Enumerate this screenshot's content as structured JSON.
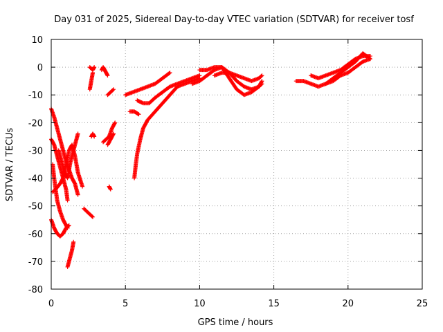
{
  "chart_data": {
    "type": "scatter",
    "title": "Day 031 of 2025, Sidereal Day-to-day VTEC variation (SDTVAR) for receiver tosf",
    "xlabel": "GPS time / hours",
    "ylabel": "SDTVAR / TECUs",
    "xlim": [
      0,
      25
    ],
    "ylim": [
      -80,
      10
    ],
    "xticks": [
      0,
      5,
      10,
      15,
      20,
      25
    ],
    "yticks": [
      -80,
      -70,
      -60,
      -50,
      -40,
      -30,
      -20,
      -10,
      0,
      10
    ],
    "grid": true,
    "marker": "plus",
    "color": "#ff0000",
    "segments": [
      [
        [
          0.0,
          -15
        ],
        [
          0.2,
          -18
        ],
        [
          0.4,
          -22
        ],
        [
          0.6,
          -26
        ],
        [
          0.8,
          -30
        ],
        [
          1.0,
          -34
        ],
        [
          1.2,
          -37
        ],
        [
          1.4,
          -40
        ],
        [
          1.6,
          -42
        ],
        [
          1.8,
          -46
        ]
      ],
      [
        [
          0.0,
          -26
        ],
        [
          0.2,
          -28
        ],
        [
          0.4,
          -32
        ],
        [
          0.6,
          -36
        ],
        [
          0.8,
          -40
        ],
        [
          1.0,
          -44
        ],
        [
          1.1,
          -48
        ]
      ],
      [
        [
          0.1,
          -35
        ],
        [
          0.2,
          -40
        ],
        [
          0.3,
          -44
        ],
        [
          0.4,
          -48
        ],
        [
          0.6,
          -52
        ],
        [
          0.8,
          -55
        ],
        [
          1.0,
          -57
        ],
        [
          1.1,
          -58
        ]
      ],
      [
        [
          0.1,
          -45
        ],
        [
          0.3,
          -44
        ],
        [
          0.6,
          -42
        ],
        [
          0.8,
          -40
        ],
        [
          1.0,
          -35
        ],
        [
          1.2,
          -30
        ],
        [
          1.4,
          -28
        ],
        [
          1.6,
          -32
        ],
        [
          1.8,
          -38
        ],
        [
          2.1,
          -43
        ]
      ],
      [
        [
          0.0,
          -55
        ],
        [
          0.2,
          -58
        ],
        [
          0.4,
          -60
        ],
        [
          0.6,
          -61
        ],
        [
          0.8,
          -60
        ],
        [
          1.0,
          -58
        ],
        [
          1.2,
          -57
        ]
      ],
      [
        [
          0.5,
          -30
        ],
        [
          0.7,
          -34
        ],
        [
          0.9,
          -38
        ],
        [
          1.1,
          -40
        ],
        [
          1.3,
          -34
        ],
        [
          1.5,
          -30
        ],
        [
          1.7,
          -26
        ],
        [
          1.8,
          -24
        ]
      ],
      [
        [
          1.1,
          -72
        ],
        [
          1.2,
          -70
        ],
        [
          1.3,
          -68
        ],
        [
          1.4,
          -66
        ],
        [
          1.5,
          -63
        ]
      ],
      [
        [
          2.2,
          -51
        ],
        [
          2.4,
          -52
        ],
        [
          2.6,
          -53
        ],
        [
          2.8,
          -54
        ]
      ],
      [
        [
          2.7,
          -25
        ],
        [
          2.8,
          -24
        ],
        [
          2.9,
          -25
        ]
      ],
      [
        [
          2.6,
          -8
        ],
        [
          2.7,
          -5
        ],
        [
          2.8,
          -2
        ]
      ],
      [
        [
          2.6,
          0
        ],
        [
          2.8,
          -1
        ],
        [
          2.9,
          0
        ]
      ],
      [
        [
          3.4,
          -1
        ],
        [
          3.5,
          0
        ],
        [
          3.6,
          -1
        ],
        [
          3.7,
          -2
        ],
        [
          3.8,
          -3
        ]
      ],
      [
        [
          3.5,
          -27
        ],
        [
          3.7,
          -26
        ],
        [
          3.9,
          -25
        ],
        [
          4.1,
          -22
        ],
        [
          4.3,
          -20
        ]
      ],
      [
        [
          3.8,
          -28
        ],
        [
          4.0,
          -26
        ],
        [
          4.2,
          -24
        ]
      ],
      [
        [
          3.8,
          -10
        ],
        [
          4.0,
          -9
        ],
        [
          4.2,
          -8
        ]
      ],
      [
        [
          3.9,
          -43
        ],
        [
          4.0,
          -44
        ]
      ],
      [
        [
          5.0,
          -10
        ],
        [
          5.5,
          -9
        ],
        [
          6.0,
          -8
        ],
        [
          6.5,
          -7
        ],
        [
          7.0,
          -6
        ],
        [
          7.5,
          -4
        ],
        [
          8.0,
          -2
        ]
      ],
      [
        [
          5.3,
          -16
        ],
        [
          5.6,
          -16
        ],
        [
          5.9,
          -17
        ]
      ],
      [
        [
          5.6,
          -40
        ],
        [
          5.7,
          -35
        ],
        [
          5.8,
          -31
        ],
        [
          6.0,
          -26
        ],
        [
          6.2,
          -22
        ],
        [
          6.5,
          -19
        ],
        [
          7.0,
          -16
        ],
        [
          7.5,
          -13
        ],
        [
          8.0,
          -10
        ],
        [
          8.5,
          -7
        ],
        [
          9.0,
          -6
        ],
        [
          9.5,
          -5
        ],
        [
          10.0,
          -4
        ]
      ],
      [
        [
          5.8,
          -12
        ],
        [
          6.2,
          -13
        ],
        [
          6.6,
          -13
        ],
        [
          7.0,
          -11
        ],
        [
          7.5,
          -9
        ],
        [
          8.0,
          -7
        ],
        [
          8.5,
          -6
        ],
        [
          9.0,
          -5
        ],
        [
          9.5,
          -4
        ],
        [
          10.0,
          -3
        ]
      ],
      [
        [
          9.5,
          -6
        ],
        [
          10.0,
          -5
        ],
        [
          10.5,
          -3
        ],
        [
          11.0,
          -1
        ],
        [
          11.5,
          0
        ],
        [
          12.0,
          -2
        ],
        [
          12.5,
          -5
        ],
        [
          13.0,
          -7
        ],
        [
          13.5,
          -8
        ],
        [
          14.0,
          -7
        ],
        [
          14.2,
          -6
        ]
      ],
      [
        [
          10.0,
          -1
        ],
        [
          10.5,
          -1
        ],
        [
          11.0,
          0
        ],
        [
          11.5,
          0
        ],
        [
          12.0,
          -4
        ],
        [
          12.5,
          -8
        ],
        [
          13.0,
          -10
        ],
        [
          13.5,
          -9
        ],
        [
          14.0,
          -7
        ],
        [
          14.2,
          -5
        ]
      ],
      [
        [
          11.0,
          -3
        ],
        [
          11.5,
          -2
        ],
        [
          12.0,
          -2
        ],
        [
          12.5,
          -3
        ],
        [
          13.0,
          -4
        ],
        [
          13.5,
          -5
        ],
        [
          14.0,
          -4
        ],
        [
          14.2,
          -3
        ]
      ],
      [
        [
          16.5,
          -5
        ],
        [
          17.0,
          -5
        ],
        [
          17.5,
          -6
        ],
        [
          18.0,
          -7
        ],
        [
          18.5,
          -6
        ],
        [
          19.0,
          -5
        ],
        [
          19.5,
          -3
        ],
        [
          20.0,
          -2
        ],
        [
          20.5,
          0
        ],
        [
          21.0,
          2
        ],
        [
          21.5,
          3
        ]
      ],
      [
        [
          17.5,
          -3
        ],
        [
          18.0,
          -4
        ],
        [
          18.5,
          -3
        ],
        [
          19.0,
          -2
        ],
        [
          19.5,
          -1
        ],
        [
          20.0,
          1
        ],
        [
          20.5,
          3
        ],
        [
          21.0,
          4
        ],
        [
          21.5,
          4
        ]
      ],
      [
        [
          18.5,
          -6
        ],
        [
          19.0,
          -4
        ],
        [
          19.5,
          -2
        ],
        [
          20.0,
          0
        ],
        [
          20.5,
          2
        ],
        [
          21.0,
          5
        ],
        [
          21.5,
          3
        ]
      ]
    ]
  }
}
